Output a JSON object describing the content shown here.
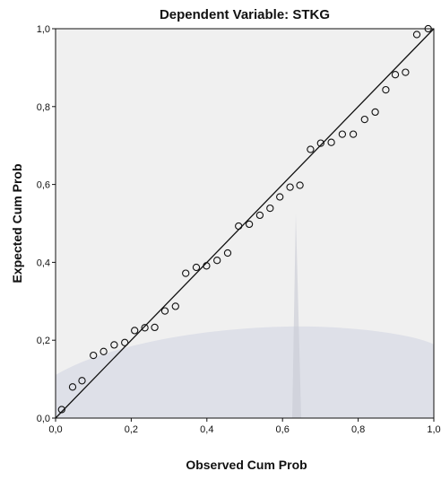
{
  "chart_data": {
    "type": "scatter",
    "title": "Dependent Variable: STKG",
    "xlabel": "Observed Cum Prob",
    "ylabel": "Expected Cum Prob",
    "xlim": [
      0,
      1
    ],
    "ylim": [
      0,
      1
    ],
    "x_ticks": [
      "0,0",
      "0,2",
      "0,4",
      "0,6",
      "0,8",
      "1,0"
    ],
    "y_ticks": [
      "0,0",
      "0,2",
      "0,4",
      "0,6",
      "0,8",
      "1,0"
    ],
    "grid": false,
    "reference_line": {
      "from": [
        0,
        0
      ],
      "to": [
        1,
        1
      ]
    },
    "points": [
      [
        0.016,
        0.022
      ],
      [
        0.045,
        0.08
      ],
      [
        0.07,
        0.096
      ],
      [
        0.1,
        0.161
      ],
      [
        0.127,
        0.171
      ],
      [
        0.155,
        0.188
      ],
      [
        0.183,
        0.194
      ],
      [
        0.209,
        0.225
      ],
      [
        0.236,
        0.232
      ],
      [
        0.262,
        0.233
      ],
      [
        0.289,
        0.275
      ],
      [
        0.317,
        0.287
      ],
      [
        0.344,
        0.372
      ],
      [
        0.372,
        0.387
      ],
      [
        0.399,
        0.391
      ],
      [
        0.427,
        0.405
      ],
      [
        0.455,
        0.424
      ],
      [
        0.484,
        0.493
      ],
      [
        0.512,
        0.498
      ],
      [
        0.54,
        0.521
      ],
      [
        0.567,
        0.539
      ],
      [
        0.593,
        0.568
      ],
      [
        0.62,
        0.593
      ],
      [
        0.646,
        0.598
      ],
      [
        0.674,
        0.69
      ],
      [
        0.701,
        0.706
      ],
      [
        0.729,
        0.708
      ],
      [
        0.758,
        0.729
      ],
      [
        0.787,
        0.729
      ],
      [
        0.817,
        0.767
      ],
      [
        0.845,
        0.786
      ],
      [
        0.873,
        0.843
      ],
      [
        0.898,
        0.882
      ],
      [
        0.925,
        0.888
      ],
      [
        0.955,
        0.985
      ],
      [
        0.985,
        1.0
      ]
    ],
    "colors": {
      "plot_background": "#f0f0f0",
      "frame": "#111111",
      "marker": "#111111",
      "reference_line": "#111111"
    }
  }
}
